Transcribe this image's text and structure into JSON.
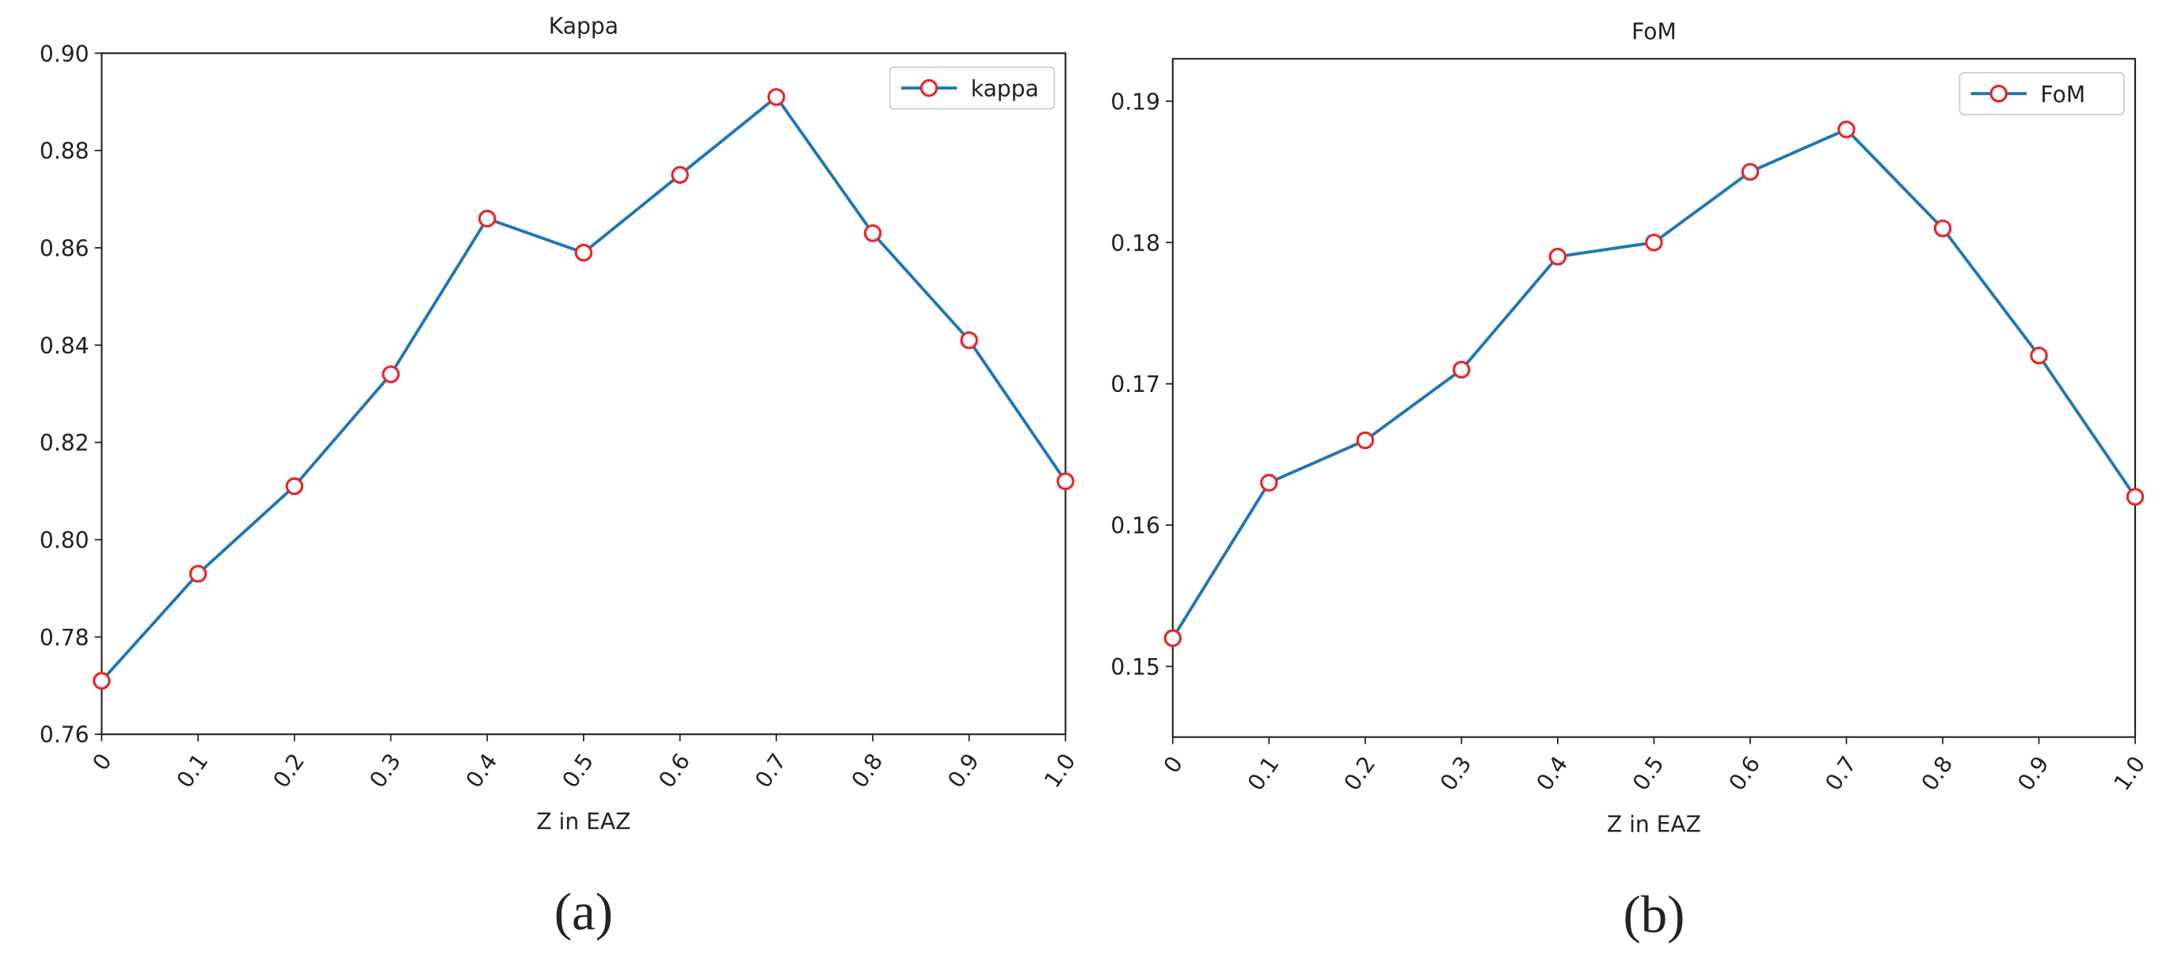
{
  "chart_data": [
    {
      "type": "line",
      "title": "Kappa",
      "x_label": "Z in EAZ",
      "caption": "(a)",
      "x": [
        0,
        0.1,
        0.2,
        0.3,
        0.4,
        0.5,
        0.6,
        0.7,
        0.8,
        0.9,
        1
      ],
      "series": [
        {
          "name": "kappa",
          "color": "#1f77b4",
          "marker_color": "#e8262a",
          "values": [
            0.771,
            0.793,
            0.811,
            0.834,
            0.866,
            0.859,
            0.875,
            0.891,
            0.863,
            0.841,
            0.812
          ]
        }
      ],
      "xlim": [
        0,
        1
      ],
      "xticks": [
        0,
        0.1,
        0.2,
        0.3,
        0.4,
        0.5,
        0.6,
        0.7,
        0.8,
        0.9,
        {
          "value": 1,
          "label": "1.0"
        }
      ],
      "ylim": [
        0.76,
        0.9
      ],
      "yticks": [
        0.76,
        0.78,
        {
          "value": 0.8,
          "label": "0.80"
        },
        0.82,
        0.84,
        0.86,
        0.88,
        {
          "value": 0.9,
          "label": "0.90"
        }
      ],
      "legend": "upper right",
      "grid": false
    },
    {
      "type": "line",
      "title": "FoM",
      "x_label": "Z in EAZ",
      "caption": "(b)",
      "x": [
        0,
        0.1,
        0.2,
        0.3,
        0.4,
        0.5,
        0.6,
        0.7,
        0.8,
        0.9,
        1
      ],
      "series": [
        {
          "name": "FoM",
          "color": "#1f77b4",
          "marker_color": "#e8262a",
          "values": [
            0.152,
            0.163,
            0.166,
            0.171,
            0.179,
            0.18,
            0.185,
            0.188,
            0.181,
            0.172,
            0.162
          ]
        }
      ],
      "xlim": [
        0,
        1
      ],
      "xticks": [
        0,
        0.1,
        0.2,
        0.3,
        0.4,
        0.5,
        0.6,
        0.7,
        0.8,
        0.9,
        {
          "value": 1,
          "label": "1.0"
        }
      ],
      "ylim": [
        0.145,
        0.193
      ],
      "yticks": [
        0.15,
        0.16,
        0.17,
        0.18,
        0.19
      ],
      "legend": "upper right",
      "grid": false
    }
  ]
}
